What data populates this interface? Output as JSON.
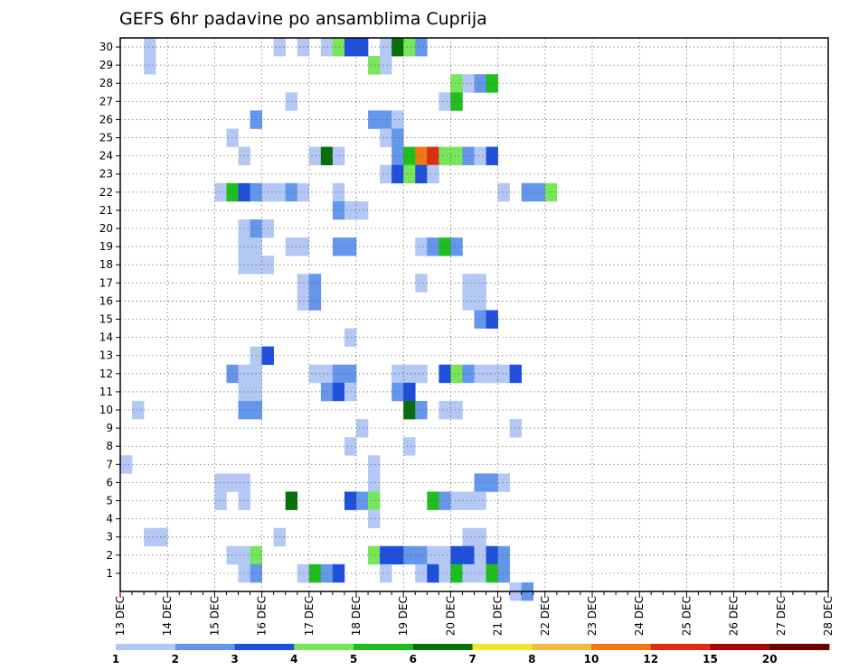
{
  "chart_data": {
    "type": "heatmap",
    "title": "GEFS 6hr padavine po ansamblima Cuprija",
    "xlabel": "",
    "ylabel": "",
    "x_tick_labels": [
      "13 DEC",
      "14 DEC",
      "15 DEC",
      "16 DEC",
      "17 DEC",
      "18 DEC",
      "19 DEC",
      "20 DEC",
      "21 DEC",
      "22 DEC",
      "23 DEC",
      "24 DEC",
      "25 DEC",
      "26 DEC",
      "27 DEC",
      "28 DEC"
    ],
    "y_tick_labels": [
      "1",
      "2",
      "3",
      "4",
      "5",
      "6",
      "7",
      "8",
      "9",
      "10",
      "11",
      "12",
      "13",
      "14",
      "15",
      "16",
      "17",
      "18",
      "19",
      "20",
      "21",
      "22",
      "23",
      "24",
      "25",
      "26",
      "27",
      "28",
      "29",
      "30"
    ],
    "members": 30,
    "time_steps": 60,
    "time_step_hours": 6,
    "grid": true,
    "colorbar": {
      "labels": [
        "1",
        "2",
        "3",
        "4",
        "5",
        "6",
        "7",
        "8",
        "10",
        "12",
        "15",
        "20"
      ],
      "colors": [
        "#b4c8f5",
        "#6496eb",
        "#1e50dc",
        "#78e65a",
        "#1ebe1e",
        "#0a6e0a",
        "#f0e632",
        "#f5b93c",
        "#f07814",
        "#dc2d14",
        "#a00a0a",
        "#6e0000"
      ]
    },
    "cells": [
      [
        30,
        2,
        1
      ],
      [
        30,
        13,
        1
      ],
      [
        30,
        15,
        1
      ],
      [
        30,
        17,
        1
      ],
      [
        30,
        18,
        4
      ],
      [
        30,
        19,
        3
      ],
      [
        30,
        20,
        3
      ],
      [
        30,
        22,
        1
      ],
      [
        30,
        23,
        6
      ],
      [
        30,
        24,
        4
      ],
      [
        30,
        25,
        2
      ],
      [
        29,
        2,
        1
      ],
      [
        29,
        21,
        4
      ],
      [
        29,
        22,
        1
      ],
      [
        28,
        28,
        4
      ],
      [
        28,
        29,
        1
      ],
      [
        28,
        30,
        2
      ],
      [
        28,
        31,
        5
      ],
      [
        27,
        14,
        1
      ],
      [
        27,
        27,
        1
      ],
      [
        27,
        28,
        5
      ],
      [
        26,
        21,
        2
      ],
      [
        26,
        22,
        2
      ],
      [
        26,
        23,
        1
      ],
      [
        26,
        11,
        2
      ],
      [
        25,
        9,
        1
      ],
      [
        25,
        22,
        1
      ],
      [
        25,
        23,
        2
      ],
      [
        24,
        10,
        1
      ],
      [
        24,
        16,
        1
      ],
      [
        24,
        17,
        6
      ],
      [
        24,
        18,
        1
      ],
      [
        24,
        23,
        2
      ],
      [
        24,
        24,
        5
      ],
      [
        24,
        25,
        9
      ],
      [
        24,
        26,
        10
      ],
      [
        24,
        27,
        4
      ],
      [
        24,
        28,
        4
      ],
      [
        24,
        29,
        2
      ],
      [
        24,
        30,
        1
      ],
      [
        24,
        31,
        3
      ],
      [
        23,
        22,
        1
      ],
      [
        23,
        23,
        3
      ],
      [
        23,
        24,
        4
      ],
      [
        23,
        25,
        3
      ],
      [
        23,
        26,
        1
      ],
      [
        22,
        8,
        1
      ],
      [
        22,
        9,
        5
      ],
      [
        22,
        10,
        3
      ],
      [
        22,
        11,
        2
      ],
      [
        22,
        12,
        1
      ],
      [
        22,
        13,
        1
      ],
      [
        22,
        14,
        2
      ],
      [
        22,
        15,
        1
      ],
      [
        22,
        18,
        1
      ],
      [
        22,
        32,
        1
      ],
      [
        22,
        34,
        2
      ],
      [
        22,
        35,
        2
      ],
      [
        22,
        36,
        4
      ],
      [
        21,
        18,
        2
      ],
      [
        21,
        19,
        1
      ],
      [
        21,
        20,
        1
      ],
      [
        20,
        10,
        1
      ],
      [
        20,
        11,
        2
      ],
      [
        20,
        12,
        1
      ],
      [
        19,
        10,
        1
      ],
      [
        19,
        11,
        1
      ],
      [
        19,
        14,
        1
      ],
      [
        19,
        15,
        1
      ],
      [
        19,
        18,
        2
      ],
      [
        19,
        19,
        2
      ],
      [
        19,
        25,
        1
      ],
      [
        19,
        26,
        2
      ],
      [
        19,
        27,
        5
      ],
      [
        19,
        28,
        2
      ],
      [
        18,
        10,
        1
      ],
      [
        18,
        11,
        1
      ],
      [
        18,
        12,
        1
      ],
      [
        17,
        15,
        1
      ],
      [
        17,
        16,
        2
      ],
      [
        17,
        25,
        1
      ],
      [
        17,
        29,
        1
      ],
      [
        17,
        30,
        1
      ],
      [
        16,
        15,
        1
      ],
      [
        16,
        16,
        2
      ],
      [
        16,
        29,
        1
      ],
      [
        16,
        30,
        1
      ],
      [
        15,
        30,
        2
      ],
      [
        15,
        31,
        3
      ],
      [
        14,
        19,
        1
      ],
      [
        13,
        11,
        1
      ],
      [
        13,
        12,
        3
      ],
      [
        12,
        9,
        2
      ],
      [
        12,
        10,
        1
      ],
      [
        12,
        11,
        1
      ],
      [
        12,
        16,
        1
      ],
      [
        12,
        17,
        1
      ],
      [
        12,
        18,
        2
      ],
      [
        12,
        19,
        2
      ],
      [
        12,
        23,
        1
      ],
      [
        12,
        24,
        1
      ],
      [
        12,
        25,
        1
      ],
      [
        12,
        27,
        3
      ],
      [
        12,
        28,
        4
      ],
      [
        12,
        29,
        2
      ],
      [
        12,
        30,
        1
      ],
      [
        12,
        31,
        1
      ],
      [
        12,
        32,
        1
      ],
      [
        12,
        33,
        3
      ],
      [
        11,
        10,
        1
      ],
      [
        11,
        11,
        1
      ],
      [
        11,
        17,
        2
      ],
      [
        11,
        18,
        3
      ],
      [
        11,
        19,
        1
      ],
      [
        11,
        23,
        2
      ],
      [
        11,
        24,
        3
      ],
      [
        10,
        1,
        1
      ],
      [
        10,
        10,
        2
      ],
      [
        10,
        11,
        2
      ],
      [
        10,
        24,
        6
      ],
      [
        10,
        25,
        2
      ],
      [
        10,
        27,
        1
      ],
      [
        10,
        28,
        1
      ],
      [
        9,
        20,
        1
      ],
      [
        9,
        33,
        1
      ],
      [
        8,
        19,
        1
      ],
      [
        8,
        24,
        1
      ],
      [
        7,
        0,
        1
      ],
      [
        7,
        21,
        1
      ],
      [
        6,
        8,
        1
      ],
      [
        6,
        9,
        1
      ],
      [
        6,
        10,
        1
      ],
      [
        6,
        21,
        1
      ],
      [
        6,
        30,
        2
      ],
      [
        6,
        31,
        2
      ],
      [
        6,
        32,
        1
      ],
      [
        5,
        8,
        1
      ],
      [
        5,
        10,
        1
      ],
      [
        5,
        14,
        6
      ],
      [
        5,
        19,
        3
      ],
      [
        5,
        20,
        2
      ],
      [
        5,
        21,
        4
      ],
      [
        5,
        26,
        5
      ],
      [
        5,
        27,
        2
      ],
      [
        5,
        28,
        1
      ],
      [
        5,
        29,
        1
      ],
      [
        5,
        30,
        1
      ],
      [
        4,
        21,
        1
      ],
      [
        3,
        2,
        1
      ],
      [
        3,
        3,
        1
      ],
      [
        3,
        13,
        1
      ],
      [
        3,
        29,
        1
      ],
      [
        3,
        30,
        1
      ],
      [
        2,
        9,
        1
      ],
      [
        2,
        10,
        1
      ],
      [
        2,
        11,
        4
      ],
      [
        2,
        21,
        4
      ],
      [
        2,
        22,
        3
      ],
      [
        2,
        23,
        3
      ],
      [
        2,
        24,
        2
      ],
      [
        2,
        25,
        2
      ],
      [
        2,
        26,
        1
      ],
      [
        2,
        27,
        1
      ],
      [
        2,
        28,
        3
      ],
      [
        2,
        29,
        3
      ],
      [
        2,
        30,
        1
      ],
      [
        2,
        31,
        3
      ],
      [
        2,
        32,
        2
      ],
      [
        1,
        10,
        1
      ],
      [
        1,
        11,
        2
      ],
      [
        1,
        15,
        1
      ],
      [
        1,
        16,
        5
      ],
      [
        1,
        17,
        2
      ],
      [
        1,
        18,
        3
      ],
      [
        1,
        22,
        1
      ],
      [
        1,
        25,
        1
      ],
      [
        1,
        26,
        3
      ],
      [
        1,
        27,
        1
      ],
      [
        1,
        28,
        5
      ],
      [
        1,
        29,
        1
      ],
      [
        1,
        30,
        1
      ],
      [
        1,
        31,
        5
      ],
      [
        1,
        32,
        2
      ],
      [
        0,
        33,
        1
      ],
      [
        0,
        34,
        2
      ]
    ]
  }
}
